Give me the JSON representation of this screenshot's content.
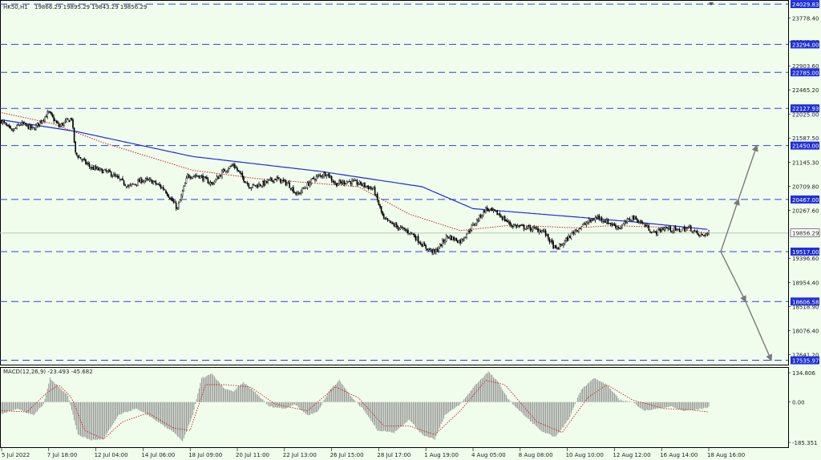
{
  "header": {
    "symbol_timeframe": "HK50,H1",
    "ohlc": "19866.29 19895.29 19843.29 19856.29"
  },
  "colors": {
    "background": "#F0FDED",
    "grid": "#C8D8C8",
    "candle": "#000000",
    "ma_slow": "#1F2BD9",
    "ma_fast": "#D02020",
    "level_line": "#3040E0",
    "level_label_bg": "#1F30D8",
    "price_label_bg": "#FFFFFF",
    "arrow": "#7A7A7A",
    "macd_hist": "#8A8A8A",
    "macd_signal": "#D02020"
  },
  "chart_data": [
    {
      "type": "candlestick",
      "title": "HK50,H1",
      "ylim": [
        17500,
        24060
      ],
      "y_ticks": [
        "24029.83",
        "23778.40",
        "23342.00",
        "23294.00",
        "22903.60",
        "22785.00",
        "22465.20",
        "22127.93",
        "22025.00",
        "21587.50",
        "21450.00",
        "21145.30",
        "20709.80",
        "20467.00",
        "20267.60",
        "19856.29",
        "19517.00",
        "19396.60",
        "18954.40",
        "18606.58",
        "18518.90",
        "18076.40",
        "17641.20",
        "17535.97"
      ],
      "y_tick_values": [
        24029.83,
        23778.4,
        23342.0,
        23294.0,
        22903.6,
        22785.0,
        22465.2,
        22127.93,
        22025.0,
        21587.5,
        21450.0,
        21145.3,
        20709.8,
        20467.0,
        20267.6,
        19856.29,
        19517.0,
        19396.6,
        18954.4,
        18606.58,
        18518.9,
        18076.4,
        17641.2,
        17535.97
      ],
      "x_ticks": [
        "5 Jul 2022",
        "7 Jul 18:00",
        "12 Jul 04:00",
        "14 Jul 06:00",
        "18 Jul 09:00",
        "20 Jul 11:00",
        "22 Jul 13:00",
        "26 Jul 15:00",
        "28 Jul 17:00",
        "1 Aug 19:00",
        "4 Aug 05:00",
        "8 Aug 08:00",
        "10 Aug 10:00",
        "12 Aug 12:00",
        "16 Aug 14:00",
        "18 Aug 16:00"
      ],
      "x_tick_bars": [
        0,
        37,
        74,
        111,
        148,
        185,
        222,
        259,
        296,
        333,
        370,
        407,
        444,
        481,
        518,
        555
      ],
      "horizontal_levels": [
        24029.83,
        23294.0,
        22785.0,
        22127.93,
        21450.0,
        20467.0,
        19517.0,
        18606.58,
        17535.97
      ],
      "current_price": 19856.29,
      "close_anchors": [
        [
          0,
          21900
        ],
        [
          8,
          21700
        ],
        [
          15,
          21850
        ],
        [
          25,
          21750
        ],
        [
          37,
          22050
        ],
        [
          45,
          21800
        ],
        [
          55,
          21950
        ],
        [
          58,
          21300
        ],
        [
          70,
          21050
        ],
        [
          85,
          20950
        ],
        [
          100,
          20700
        ],
        [
          110,
          20820
        ],
        [
          118,
          20800
        ],
        [
          128,
          20650
        ],
        [
          138,
          20300
        ],
        [
          146,
          20900
        ],
        [
          155,
          20900
        ],
        [
          165,
          20750
        ],
        [
          175,
          21000
        ],
        [
          182,
          21100
        ],
        [
          188,
          20900
        ],
        [
          195,
          20700
        ],
        [
          205,
          20750
        ],
        [
          215,
          20850
        ],
        [
          225,
          20750
        ],
        [
          232,
          20550
        ],
        [
          245,
          20850
        ],
        [
          255,
          20950
        ],
        [
          262,
          20750
        ],
        [
          272,
          20800
        ],
        [
          282,
          20750
        ],
        [
          292,
          20650
        ],
        [
          300,
          20100
        ],
        [
          312,
          19950
        ],
        [
          322,
          19850
        ],
        [
          332,
          19600
        ],
        [
          340,
          19500
        ],
        [
          350,
          19800
        ],
        [
          360,
          19700
        ],
        [
          372,
          20050
        ],
        [
          380,
          20300
        ],
        [
          390,
          20200
        ],
        [
          400,
          20000
        ],
        [
          412,
          19950
        ],
        [
          425,
          19900
        ],
        [
          435,
          19550
        ],
        [
          440,
          19650
        ],
        [
          450,
          19900
        ],
        [
          460,
          20050
        ],
        [
          468,
          20150
        ],
        [
          476,
          20050
        ],
        [
          485,
          19950
        ],
        [
          495,
          20150
        ],
        [
          505,
          20000
        ],
        [
          512,
          19850
        ],
        [
          520,
          19950
        ],
        [
          530,
          19900
        ],
        [
          540,
          19950
        ],
        [
          548,
          19800
        ],
        [
          555,
          19856.29
        ]
      ],
      "ma_slow_anchors": [
        [
          0,
          21920
        ],
        [
          60,
          21700
        ],
        [
          150,
          21250
        ],
        [
          250,
          20980
        ],
        [
          330,
          20700
        ],
        [
          370,
          20300
        ],
        [
          450,
          20150
        ],
        [
          500,
          20050
        ],
        [
          555,
          19920
        ]
      ],
      "ma_fast_anchors": [
        [
          0,
          22050
        ],
        [
          40,
          21850
        ],
        [
          80,
          21500
        ],
        [
          150,
          21000
        ],
        [
          200,
          20850
        ],
        [
          280,
          20700
        ],
        [
          320,
          20200
        ],
        [
          360,
          19900
        ],
        [
          400,
          20000
        ],
        [
          450,
          19950
        ],
        [
          480,
          19990
        ],
        [
          520,
          19960
        ],
        [
          555,
          19850
        ]
      ],
      "projection": [
        [
          19517.0,
          20467.0,
          21450.0
        ],
        [
          19517.0,
          18606.58,
          17535.97
        ]
      ]
    },
    {
      "type": "histogram",
      "title": "MACD(12,26,9) -23.493 -45.682",
      "ylim": [
        -200,
        150
      ],
      "y_ticks": [
        "134.806",
        "0.00",
        "-185.351"
      ],
      "y_tick_values": [
        134.806,
        0,
        -185.351
      ],
      "macd_anchors": [
        [
          0,
          -55
        ],
        [
          12,
          -30
        ],
        [
          25,
          -60
        ],
        [
          33,
          -10
        ],
        [
          38,
          110
        ],
        [
          45,
          70
        ],
        [
          52,
          30
        ],
        [
          60,
          -150
        ],
        [
          70,
          -175
        ],
        [
          80,
          -170
        ],
        [
          92,
          -60
        ],
        [
          105,
          -30
        ],
        [
          115,
          -60
        ],
        [
          125,
          -100
        ],
        [
          135,
          -140
        ],
        [
          142,
          -180
        ],
        [
          150,
          -60
        ],
        [
          157,
          110
        ],
        [
          165,
          130
        ],
        [
          175,
          60
        ],
        [
          182,
          50
        ],
        [
          190,
          90
        ],
        [
          200,
          40
        ],
        [
          210,
          -20
        ],
        [
          222,
          -30
        ],
        [
          230,
          -10
        ],
        [
          240,
          -60
        ],
        [
          248,
          -45
        ],
        [
          258,
          60
        ],
        [
          265,
          100
        ],
        [
          275,
          20
        ],
        [
          285,
          -40
        ],
        [
          295,
          -130
        ],
        [
          308,
          -140
        ],
        [
          320,
          -80
        ],
        [
          330,
          -150
        ],
        [
          340,
          -170
        ],
        [
          348,
          -60
        ],
        [
          360,
          -10
        ],
        [
          372,
          80
        ],
        [
          382,
          140
        ],
        [
          390,
          90
        ],
        [
          398,
          10
        ],
        [
          410,
          -60
        ],
        [
          425,
          -140
        ],
        [
          435,
          -160
        ],
        [
          445,
          -80
        ],
        [
          455,
          60
        ],
        [
          465,
          110
        ],
        [
          475,
          80
        ],
        [
          485,
          10
        ],
        [
          495,
          0
        ],
        [
          505,
          -40
        ],
        [
          515,
          -30
        ],
        [
          525,
          -20
        ],
        [
          535,
          -40
        ],
        [
          545,
          -35
        ],
        [
          555,
          -23.493
        ]
      ],
      "signal_anchors": [
        [
          0,
          -40
        ],
        [
          20,
          -45
        ],
        [
          35,
          40
        ],
        [
          45,
          80
        ],
        [
          55,
          20
        ],
        [
          65,
          -130
        ],
        [
          80,
          -170
        ],
        [
          95,
          -90
        ],
        [
          115,
          -50
        ],
        [
          135,
          -120
        ],
        [
          148,
          -130
        ],
        [
          160,
          80
        ],
        [
          175,
          80
        ],
        [
          195,
          70
        ],
        [
          215,
          -10
        ],
        [
          240,
          -40
        ],
        [
          262,
          70
        ],
        [
          280,
          20
        ],
        [
          300,
          -110
        ],
        [
          320,
          -110
        ],
        [
          340,
          -150
        ],
        [
          360,
          -40
        ],
        [
          380,
          100
        ],
        [
          395,
          80
        ],
        [
          420,
          -90
        ],
        [
          440,
          -140
        ],
        [
          460,
          20
        ],
        [
          475,
          80
        ],
        [
          495,
          10
        ],
        [
          520,
          -30
        ],
        [
          540,
          -35
        ],
        [
          555,
          -45.682
        ]
      ]
    }
  ]
}
